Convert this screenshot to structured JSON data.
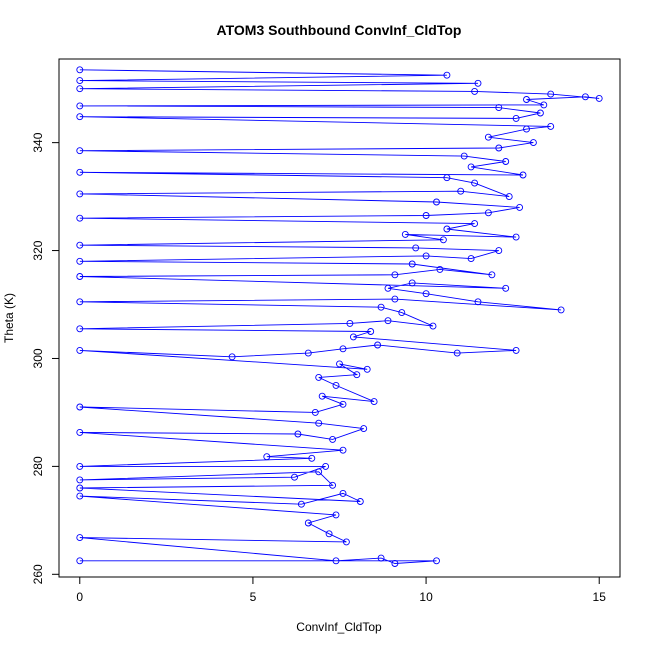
{
  "chart_data": {
    "type": "scatter",
    "title": "ATOM3 Southbound ConvInf_CldTop",
    "xlabel": "ConvInf_CldTop",
    "ylabel": "Theta (K)",
    "xlim": [
      -0.6,
      15.6
    ],
    "ylim": [
      259.5,
      355.5
    ],
    "x_ticks": [
      0,
      5,
      10,
      15
    ],
    "x_tick_labels": [
      "0",
      "5",
      "10",
      "15"
    ],
    "y_ticks": [
      260,
      280,
      300,
      320,
      340
    ],
    "y_tick_labels": [
      "260",
      "280",
      "300",
      "320",
      "340"
    ],
    "marker": "open-circle",
    "connected": true,
    "grid": false,
    "series_color": "#0000ff",
    "series": [
      {
        "points": [
          [
            0,
            262.5
          ],
          [
            10.3,
            262.5
          ],
          [
            9.1,
            262
          ],
          [
            8.7,
            263
          ],
          [
            7.4,
            262.5
          ],
          [
            0,
            266.8
          ],
          [
            7.7,
            266
          ],
          [
            7.2,
            267.5
          ],
          [
            6.6,
            269.5
          ],
          [
            7.4,
            271
          ],
          [
            0,
            274.5
          ],
          [
            6.4,
            273
          ],
          [
            7.6,
            275
          ],
          [
            8.1,
            273.5
          ],
          [
            0,
            276
          ],
          [
            7.3,
            276.5
          ],
          [
            6.9,
            279
          ],
          [
            0,
            277.5
          ],
          [
            6.2,
            278
          ],
          [
            7.1,
            280
          ],
          [
            0,
            280
          ],
          [
            6.7,
            281.5
          ],
          [
            5.4,
            281.8
          ],
          [
            7.6,
            283
          ],
          [
            0,
            286.3
          ],
          [
            6.3,
            286
          ],
          [
            7.3,
            285
          ],
          [
            8.2,
            287
          ],
          [
            6.9,
            288
          ],
          [
            0,
            291
          ],
          [
            6.8,
            290
          ],
          [
            7.6,
            291.5
          ],
          [
            7.0,
            293
          ],
          [
            8.5,
            292
          ],
          [
            7.4,
            295
          ],
          [
            6.9,
            296.5
          ],
          [
            8.0,
            297
          ],
          [
            7.5,
            299
          ],
          [
            8.3,
            298
          ],
          [
            0,
            301.5
          ],
          [
            4.4,
            300.3
          ],
          [
            6.6,
            301
          ],
          [
            7.6,
            301.8
          ],
          [
            8.6,
            302.5
          ],
          [
            10.9,
            301
          ],
          [
            12.6,
            301.5
          ],
          [
            7.9,
            304
          ],
          [
            8.4,
            305
          ],
          [
            0,
            305.5
          ],
          [
            7.8,
            306.5
          ],
          [
            8.9,
            307
          ],
          [
            10.2,
            306
          ],
          [
            9.3,
            308.5
          ],
          [
            8.7,
            309.5
          ],
          [
            0,
            310.5
          ],
          [
            9.1,
            311
          ],
          [
            13.9,
            309
          ],
          [
            11.5,
            310.5
          ],
          [
            10.0,
            312
          ],
          [
            8.9,
            313
          ],
          [
            9.6,
            314
          ],
          [
            12.3,
            313
          ],
          [
            0,
            315.2
          ],
          [
            9.1,
            315.5
          ],
          [
            10.4,
            316.5
          ],
          [
            11.9,
            315.5
          ],
          [
            9.6,
            317.5
          ],
          [
            0,
            318
          ],
          [
            10.0,
            319
          ],
          [
            11.3,
            318.5
          ],
          [
            12.1,
            320
          ],
          [
            9.7,
            320.5
          ],
          [
            0,
            321
          ],
          [
            10.5,
            322
          ],
          [
            9.4,
            323
          ],
          [
            12.6,
            322.5
          ],
          [
            10.6,
            324
          ],
          [
            11.4,
            325
          ],
          [
            0,
            326
          ],
          [
            10.0,
            326.5
          ],
          [
            11.8,
            327
          ],
          [
            12.7,
            328
          ],
          [
            10.3,
            329
          ],
          [
            0,
            330.5
          ],
          [
            11.0,
            331
          ],
          [
            12.4,
            330
          ],
          [
            11.4,
            332.5
          ],
          [
            10.6,
            333.5
          ],
          [
            0,
            334.5
          ],
          [
            12.8,
            334
          ],
          [
            11.3,
            335.5
          ],
          [
            12.3,
            336.5
          ],
          [
            11.1,
            337.5
          ],
          [
            0,
            338.5
          ],
          [
            12.1,
            339
          ],
          [
            13.1,
            340
          ],
          [
            11.8,
            341
          ],
          [
            12.9,
            342.5
          ],
          [
            13.6,
            343
          ],
          [
            0,
            344.8
          ],
          [
            12.6,
            344.5
          ],
          [
            13.3,
            345.5
          ],
          [
            12.1,
            346.5
          ],
          [
            0,
            346.8
          ],
          [
            13.4,
            347
          ],
          [
            12.9,
            348
          ],
          [
            14.6,
            348.5
          ],
          [
            15.0,
            348.2
          ],
          [
            13.6,
            349
          ],
          [
            11.4,
            349.5
          ],
          [
            0,
            350
          ],
          [
            11.5,
            351
          ],
          [
            0,
            351.5
          ],
          [
            10.6,
            352.5
          ],
          [
            0,
            353.5
          ]
        ]
      }
    ]
  }
}
